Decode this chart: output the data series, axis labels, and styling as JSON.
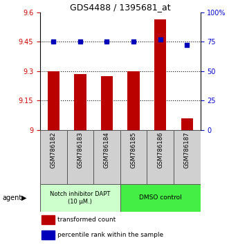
{
  "title": "GDS4488 / 1395681_at",
  "samples": [
    "GSM786182",
    "GSM786183",
    "GSM786184",
    "GSM786185",
    "GSM786186",
    "GSM786187"
  ],
  "bar_values": [
    9.3,
    9.285,
    9.275,
    9.3,
    9.565,
    9.06
  ],
  "percentile_values": [
    75,
    75,
    75,
    75,
    77,
    72
  ],
  "bar_bottom": 9.0,
  "ylim_left": [
    9.0,
    9.6
  ],
  "ylim_right": [
    0,
    100
  ],
  "yticks_left": [
    9.0,
    9.15,
    9.3,
    9.45,
    9.6
  ],
  "yticks_right": [
    0,
    25,
    50,
    75,
    100
  ],
  "ytick_labels_left": [
    "9",
    "9.15",
    "9.3",
    "9.45",
    "9.6"
  ],
  "ytick_labels_right": [
    "0",
    "25",
    "50",
    "75",
    "100%"
  ],
  "hlines": [
    9.15,
    9.3,
    9.45
  ],
  "bar_color": "#bb0000",
  "dot_color": "#0000bb",
  "bar_width": 0.45,
  "group1_label": "Notch inhibitor DAPT\n(10 μM.)",
  "group2_label": "DMSO control",
  "group1_color": "#ccffcc",
  "group2_color": "#44ee44",
  "group1_samples": [
    0,
    1,
    2
  ],
  "group2_samples": [
    3,
    4,
    5
  ],
  "agent_label": "agent",
  "legend_bar_label": "transformed count",
  "legend_dot_label": "percentile rank within the sample",
  "background_color": "#ffffff",
  "tick_label_color_left": "#cc0000",
  "tick_label_color_right": "#0000cc",
  "xlabel_bg": "#d0d0d0"
}
